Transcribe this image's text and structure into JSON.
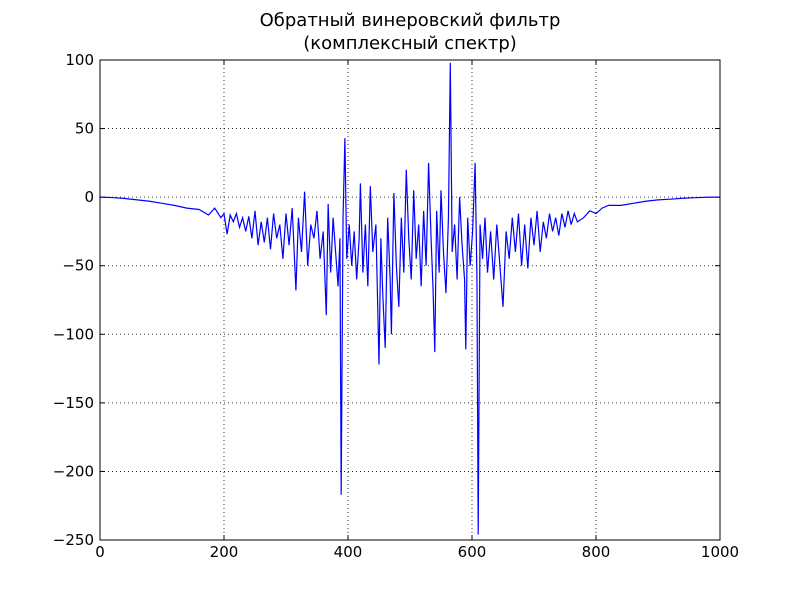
{
  "chart_data": {
    "type": "line",
    "title": "Обратный винеровский фильтр",
    "subtitle": "(комплексный спектр)",
    "color": "#0000ff",
    "grid": true,
    "xlim": [
      0,
      1000
    ],
    "xticks": [
      0,
      200,
      400,
      600,
      800,
      1000
    ],
    "ylim": [
      -250,
      100
    ],
    "yticks": [
      {
        "value": -250,
        "label": "−250"
      },
      {
        "value": -200,
        "label": "−200"
      },
      {
        "value": -150,
        "label": "−150"
      },
      {
        "value": -100,
        "label": "−100"
      },
      {
        "value": -50,
        "label": "−50"
      },
      0,
      50,
      100
    ],
    "x": [
      0,
      20,
      40,
      60,
      80,
      100,
      120,
      140,
      160,
      175,
      185,
      195,
      200,
      205,
      210,
      215,
      220,
      225,
      230,
      235,
      240,
      245,
      250,
      255,
      260,
      265,
      270,
      275,
      280,
      285,
      290,
      295,
      300,
      305,
      310,
      316,
      320,
      325,
      330,
      335,
      340,
      345,
      350,
      355,
      360,
      365,
      368,
      372,
      376,
      380,
      384,
      387,
      389,
      392,
      395,
      398,
      402,
      406,
      410,
      414,
      418,
      420,
      424,
      428,
      432,
      436,
      440,
      445,
      450,
      453,
      456,
      460,
      464,
      468,
      470,
      474,
      478,
      482,
      486,
      490,
      494,
      498,
      502,
      506,
      510,
      514,
      518,
      522,
      526,
      530,
      534,
      537,
      540,
      543,
      547,
      550,
      554,
      558,
      562,
      565,
      568,
      572,
      576,
      580,
      584,
      588,
      590,
      593,
      597,
      601,
      605,
      608,
      610,
      613,
      617,
      621,
      625,
      630,
      635,
      640,
      645,
      650,
      655,
      660,
      665,
      670,
      675,
      680,
      685,
      690,
      695,
      700,
      705,
      710,
      715,
      720,
      725,
      730,
      735,
      740,
      745,
      750,
      755,
      760,
      765,
      770,
      780,
      790,
      800,
      810,
      820,
      840,
      860,
      880,
      900,
      920,
      940,
      960,
      980,
      1000
    ],
    "values": [
      0,
      -0.3,
      -1,
      -2,
      -3,
      -4.5,
      -6,
      -8,
      -9,
      -13,
      -8,
      -15,
      -12,
      -27,
      -13,
      -18,
      -12,
      -22,
      -15,
      -25,
      -14,
      -30,
      -10,
      -35,
      -18,
      -33,
      -15,
      -38,
      -12,
      -30,
      -20,
      -45,
      -12,
      -35,
      -8,
      -68,
      -15,
      -40,
      4,
      -50,
      -20,
      -30,
      -10,
      -45,
      -25,
      -86,
      -5,
      -55,
      -15,
      -40,
      -65,
      -30,
      -217,
      -15,
      43,
      -45,
      -20,
      -50,
      -25,
      -60,
      -30,
      10,
      -55,
      -20,
      -65,
      8,
      -40,
      -20,
      -122,
      -30,
      -70,
      -110,
      -15,
      -60,
      -100,
      3,
      -50,
      -80,
      -15,
      -55,
      20,
      -30,
      -60,
      5,
      -45,
      -20,
      -65,
      -10,
      -50,
      25,
      -30,
      -65,
      -113,
      -10,
      -55,
      5,
      -40,
      -70,
      -15,
      98,
      -40,
      -20,
      -60,
      0,
      -35,
      -60,
      -111,
      -15,
      -50,
      -25,
      25,
      -60,
      -246,
      -20,
      -45,
      -15,
      -55,
      -25,
      -60,
      -20,
      -50,
      -80,
      -25,
      -45,
      -15,
      -40,
      -12,
      -50,
      -20,
      -52,
      -15,
      -35,
      -10,
      -40,
      -18,
      -30,
      -12,
      -25,
      -15,
      -28,
      -12,
      -22,
      -10,
      -20,
      -12,
      -18,
      -15,
      -10,
      -12,
      -8,
      -6,
      -6,
      -4.5,
      -3,
      -2,
      -1.5,
      -0.8,
      -0.4,
      -0.1,
      0
    ]
  }
}
